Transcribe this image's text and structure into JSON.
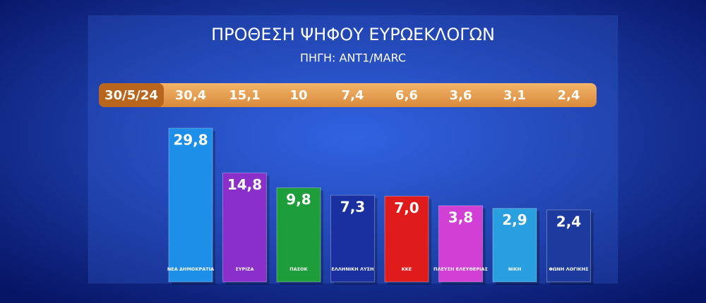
{
  "chart_data": {
    "type": "bar",
    "title": "ΠΡΟΘΕΣΗ ΨΗΦΟΥ ΕΥΡΩΕΚΛΟΓΩΝ",
    "subtitle": "ΠΗΓΗ: ANT1/MARC",
    "categories": [
      "ΝΕΑ ΔΗΜΟΚΡΑΤΙΑ",
      "ΣΥΡΙΖΑ",
      "ΠΑΣΟΚ",
      "ΕΛΛΗΝΙΚΗ ΛΥΣΗ",
      "ΚΚΕ",
      "ΠΛΕΥΣΗ ΕΛΕΥΘΕΡΙΑΣ",
      "ΝΙΚΗ",
      "ΦΩΝΗ ΛΟΓΙΚΗΣ"
    ],
    "values": [
      29.8,
      14.8,
      9.8,
      7.3,
      7.0,
      3.8,
      2.9,
      2.4
    ],
    "value_labels": [
      "29,8",
      "14,8",
      "9,8",
      "7,3",
      "7,0",
      "3,8",
      "2,9",
      "2,4"
    ],
    "colors": [
      "#1e8fe8",
      "#8a2fc9",
      "#1e9e3a",
      "#1a2fa0",
      "#e01b1b",
      "#d23fd4",
      "#2a9fe0",
      "#1d3a9e"
    ],
    "previous": {
      "date": "30/5/24",
      "values": [
        30.4,
        15.1,
        10,
        7.4,
        6.6,
        3.6,
        3.1,
        2.4
      ],
      "value_labels": [
        "30,4",
        "15,1",
        "10",
        "7,4",
        "6,6",
        "3,6",
        "3,1",
        "2,4"
      ]
    }
  }
}
